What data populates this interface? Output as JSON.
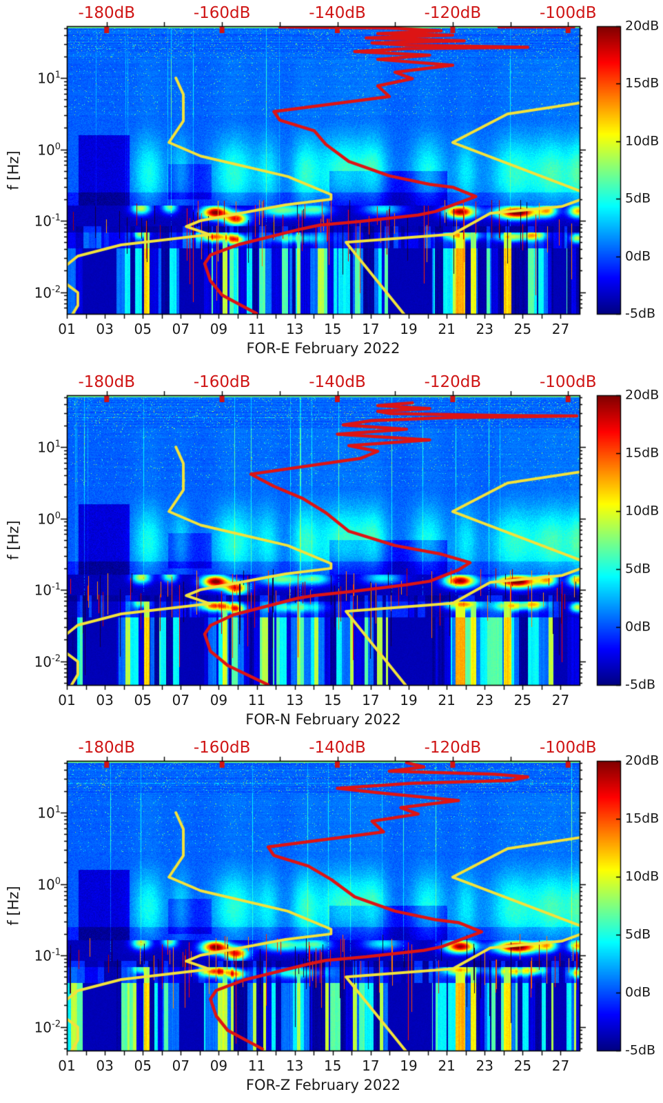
{
  "meta": {
    "figure_type": "seismic spectrogram probability plots with Peterson noise models",
    "month": "February 2022"
  },
  "chart_data": {
    "type": "heatmap",
    "panels": [
      {
        "id": "FOR-E",
        "label": "FOR-E February 2022",
        "seed": 11,
        "red_curve": [
          [
            -150,
            1.716
          ],
          [
            -131,
            1.7
          ],
          [
            -122,
            1.66
          ],
          [
            -133,
            1.62
          ],
          [
            -120,
            1.6
          ],
          [
            -135,
            1.56
          ],
          [
            -118,
            1.52
          ],
          [
            -134,
            1.49
          ],
          [
            -128,
            1.46
          ],
          [
            -107,
            1.43
          ],
          [
            -128,
            1.41
          ],
          [
            -137,
            1.37
          ],
          [
            -124,
            1.32
          ],
          [
            -133,
            1.26
          ],
          [
            -120,
            1.18
          ],
          [
            -130,
            1.08
          ],
          [
            -127,
            0.99
          ],
          [
            -133,
            0.89
          ],
          [
            -131,
            0.74
          ],
          [
            -151,
            0.53
          ],
          [
            -150,
            0.41
          ],
          [
            -144,
            0.26
          ],
          [
            -142,
            0.07
          ],
          [
            -138,
            -0.17
          ],
          [
            -131,
            -0.37
          ],
          [
            -124,
            -0.49
          ],
          [
            -120,
            -0.53
          ],
          [
            -116,
            -0.66
          ],
          [
            -118,
            -0.72
          ],
          [
            -123,
            -0.87
          ],
          [
            -126,
            -0.92
          ],
          [
            -136,
            -1.01
          ],
          [
            -143,
            -1.06
          ],
          [
            -146,
            -1.11
          ],
          [
            -157,
            -1.33
          ],
          [
            -162,
            -1.48
          ],
          [
            -163,
            -1.6
          ],
          [
            -162,
            -1.84
          ],
          [
            -160,
            -2.04
          ],
          [
            -154,
            -2.3
          ],
          null,
          [
            -112,
            1.715
          ],
          [
            -99,
            1.715
          ]
        ]
      },
      {
        "id": "FOR-N",
        "label": "FOR-N February 2022",
        "seed": 22,
        "red_curve": [
          [
            -127,
            1.62
          ],
          [
            -133,
            1.58
          ],
          [
            -124,
            1.54
          ],
          [
            -133,
            1.5
          ],
          [
            -131,
            1.47
          ],
          [
            -110,
            1.44
          ],
          [
            -98.5,
            1.435
          ],
          [
            -121,
            1.41
          ],
          [
            -134,
            1.37
          ],
          [
            -139,
            1.31
          ],
          [
            -128,
            1.25
          ],
          [
            -140,
            1.18
          ],
          [
            -124,
            1.1
          ],
          [
            -138,
            1.02
          ],
          [
            -133,
            0.94
          ],
          [
            -136,
            0.84
          ],
          [
            -155,
            0.62
          ],
          [
            -151,
            0.45
          ],
          [
            -146,
            0.28
          ],
          [
            -142,
            0.08
          ],
          [
            -138,
            -0.18
          ],
          [
            -130,
            -0.38
          ],
          [
            -122,
            -0.5
          ],
          [
            -117,
            -0.62
          ],
          [
            -119,
            -0.72
          ],
          [
            -124,
            -0.88
          ],
          [
            -128,
            -0.93
          ],
          [
            -137,
            -1.02
          ],
          [
            -144,
            -1.08
          ],
          [
            -147,
            -1.12
          ],
          [
            -158,
            -1.35
          ],
          [
            -162,
            -1.5
          ],
          [
            -163,
            -1.62
          ],
          [
            -162,
            -1.86
          ],
          [
            -159,
            -2.06
          ],
          [
            -152,
            -2.33
          ]
        ]
      },
      {
        "id": "FOR-Z",
        "label": "FOR-Z February 2022",
        "seed": 33,
        "red_curve": [
          [
            -128,
            1.7
          ],
          [
            -125,
            1.64
          ],
          [
            -131,
            1.58
          ],
          [
            -113,
            1.54
          ],
          [
            -107,
            1.5
          ],
          [
            -110,
            1.45
          ],
          [
            -127,
            1.41
          ],
          [
            -140,
            1.34
          ],
          [
            -132,
            1.27
          ],
          [
            -119,
            1.17
          ],
          [
            -129,
            1.07
          ],
          [
            -126,
            0.98
          ],
          [
            -134,
            0.88
          ],
          [
            -132,
            0.73
          ],
          [
            -152,
            0.52
          ],
          [
            -151,
            0.4
          ],
          [
            -145,
            0.25
          ],
          [
            -141,
            0.06
          ],
          [
            -137,
            -0.18
          ],
          [
            -130,
            -0.38
          ],
          [
            -123,
            -0.5
          ],
          [
            -119,
            -0.54
          ],
          [
            -115,
            -0.67
          ],
          [
            -117,
            -0.73
          ],
          [
            -122,
            -0.88
          ],
          [
            -125,
            -0.93
          ],
          [
            -135,
            -1.02
          ],
          [
            -142,
            -1.07
          ],
          [
            -145,
            -1.12
          ],
          [
            -156,
            -1.34
          ],
          [
            -161,
            -1.49
          ],
          [
            -162,
            -1.61
          ],
          [
            -161,
            -1.85
          ],
          [
            -159,
            -2.05
          ],
          [
            -153,
            -2.31
          ]
        ]
      }
    ],
    "x_axis": {
      "tick_labels": [
        "01",
        "03",
        "05",
        "07",
        "09",
        "11",
        "13",
        "15",
        "17",
        "19",
        "21",
        "23",
        "25",
        "27"
      ],
      "tick_days": [
        1,
        3,
        5,
        7,
        9,
        11,
        13,
        15,
        17,
        19,
        21,
        23,
        25,
        27
      ],
      "day_range": [
        1,
        28
      ]
    },
    "y_axis": {
      "label": "f [Hz]",
      "scale": "log",
      "tick_base": "10",
      "tick_exps": [
        "1",
        "0",
        "-1",
        "-2"
      ],
      "tick_logf": [
        1,
        0,
        -1,
        -2
      ],
      "freq_range_hz": [
        0.0049,
        53
      ]
    },
    "top_axis": {
      "tick_labels": [
        "-180dB",
        "-160dB",
        "-140dB",
        "-120dB",
        "-100dB"
      ],
      "tick_values": [
        -180,
        -160,
        -140,
        -120,
        -100
      ],
      "range_db": [
        -186.9,
        -98.0
      ],
      "color": "#cf1414"
    },
    "colorbar": {
      "tick_labels": [
        "20dB",
        "15dB",
        "10dB",
        "5dB",
        "0dB",
        "-5dB"
      ],
      "tick_values": [
        20,
        15,
        10,
        5,
        0,
        -5
      ],
      "range_db": [
        -5,
        20
      ],
      "colormap": "jet"
    },
    "noise_models": {
      "color": "#f2e23c",
      "nlnm": [
        [
          10,
          -168
        ],
        [
          5.88,
          -166.7
        ],
        [
          2.5,
          -166.7
        ],
        [
          1.25,
          -169.2
        ],
        [
          0.806,
          -163.7
        ],
        [
          0.417,
          -148.6
        ],
        [
          0.233,
          -141.1
        ],
        [
          0.2,
          -141.1
        ],
        [
          0.167,
          -149
        ],
        [
          0.1,
          -163.8
        ],
        [
          0.083,
          -166.2
        ],
        [
          0.064,
          -162.1
        ],
        [
          0.046,
          -177.5
        ],
        [
          0.032,
          -185
        ],
        [
          0.022,
          -187.5
        ],
        [
          0.014,
          -187.5
        ],
        [
          0.0099,
          -185
        ],
        [
          0.0065,
          -185
        ],
        [
          0.003,
          -187.5
        ]
      ],
      "nhnm": [
        [
          10,
          -91.5
        ],
        [
          4.55,
          -97.4
        ],
        [
          3.13,
          -110.5
        ],
        [
          1.25,
          -120
        ],
        [
          0.263,
          -98
        ],
        [
          0.217,
          -96.5
        ],
        [
          0.159,
          -101
        ],
        [
          0.127,
          -113.5
        ],
        [
          0.065,
          -120
        ],
        [
          0.05,
          -138.5
        ],
        [
          0.0028,
          -126
        ]
      ]
    },
    "red_curve_color": "#dd1414",
    "spectrogram_features": {
      "plumes": [
        {
          "d": 5.3,
          "w": 0.8,
          "s": 4.5
        },
        {
          "d": 7,
          "w": 0.5,
          "s": 3
        },
        {
          "d": 9.8,
          "w": 1.1,
          "s": 5
        },
        {
          "d": 11.6,
          "w": 0.6,
          "s": 3.5
        },
        {
          "d": 13.5,
          "w": 0.7,
          "s": 4.5
        },
        {
          "d": 15.6,
          "w": 1.5,
          "s": 5.5
        },
        {
          "d": 17.2,
          "w": 0.7,
          "s": 4
        },
        {
          "d": 20,
          "w": 0.9,
          "s": 4.5
        },
        {
          "d": 22,
          "w": 0.6,
          "s": 3.5
        },
        {
          "d": 24.5,
          "w": 1.2,
          "s": 5
        },
        {
          "d": 26.6,
          "w": 1.1,
          "s": 5.5
        },
        {
          "d": 28,
          "w": 0.6,
          "s": 5
        }
      ],
      "dark_patches": [
        {
          "d0": 1.6,
          "d1": 4.3,
          "lf0": -0.78,
          "lf1": 0.2,
          "a": 3.2
        },
        {
          "d0": 14.8,
          "d1": 21,
          "lf0": -0.78,
          "lf1": -0.3,
          "a": 2.6
        },
        {
          "d0": 6.3,
          "d1": 8.6,
          "lf0": -0.7,
          "lf1": -0.2,
          "a": 1.8
        }
      ],
      "microseism_spots": [
        {
          "d": 4.9,
          "lf": -0.82,
          "w": 0.5,
          "s": 13
        },
        {
          "d": 6.4,
          "lf": -0.8,
          "w": 0.4,
          "s": 11
        },
        {
          "d": 8.8,
          "lf": -0.88,
          "w": 0.7,
          "s": 24
        },
        {
          "d": 9.9,
          "lf": -0.97,
          "w": 0.6,
          "s": 20
        },
        {
          "d": 12.3,
          "lf": -0.85,
          "w": 1.2,
          "s": 11
        },
        {
          "d": 14.1,
          "lf": -0.84,
          "w": 0.8,
          "s": 9
        },
        {
          "d": 17.6,
          "lf": -0.83,
          "w": 1.0,
          "s": 8
        },
        {
          "d": 21.7,
          "lf": -0.87,
          "w": 0.8,
          "s": 23
        },
        {
          "d": 24.7,
          "lf": -0.88,
          "w": 1.1,
          "s": 25
        },
        {
          "d": 26.3,
          "lf": -0.85,
          "w": 0.5,
          "s": 14
        },
        {
          "d": 27.9,
          "lf": -0.86,
          "w": 0.5,
          "s": 16
        }
      ],
      "low_band_spots": [
        {
          "d": 4.9,
          "lf": -1.18,
          "w": 0.4,
          "s": 10
        },
        {
          "d": 8.8,
          "lf": -1.22,
          "w": 0.8,
          "s": 18
        },
        {
          "d": 9.9,
          "lf": -1.26,
          "w": 0.5,
          "s": 15
        },
        {
          "d": 13,
          "lf": -1.24,
          "w": 1.4,
          "s": 8
        },
        {
          "d": 21.8,
          "lf": -1.2,
          "w": 0.9,
          "s": 14
        },
        {
          "d": 24.4,
          "lf": -1.22,
          "w": 0.8,
          "s": 13
        },
        {
          "d": 25.6,
          "lf": -1.2,
          "w": 0.6,
          "s": 12
        },
        {
          "d": 27.9,
          "lf": -1.24,
          "w": 0.4,
          "s": 13
        }
      ],
      "bright_columns": [
        {
          "d": 5.2,
          "w": 0.15,
          "s": 12
        },
        {
          "d": 9.3,
          "w": 0.12,
          "s": 10
        },
        {
          "d": 13.2,
          "w": 0.1,
          "s": 9
        },
        {
          "d": 21.7,
          "w": 0.25,
          "s": 13
        },
        {
          "d": 22.4,
          "w": 0.15,
          "s": 11
        },
        {
          "d": 24.2,
          "w": 0.2,
          "s": 12
        }
      ],
      "dark_columns": [
        {
          "d0": 1.8,
          "d1": 3.6
        },
        {
          "d0": 6.9,
          "d1": 8.2
        },
        {
          "d0": 17.9,
          "d1": 20.2
        },
        {
          "d0": 26.6,
          "d1": 27.3
        }
      ]
    }
  }
}
